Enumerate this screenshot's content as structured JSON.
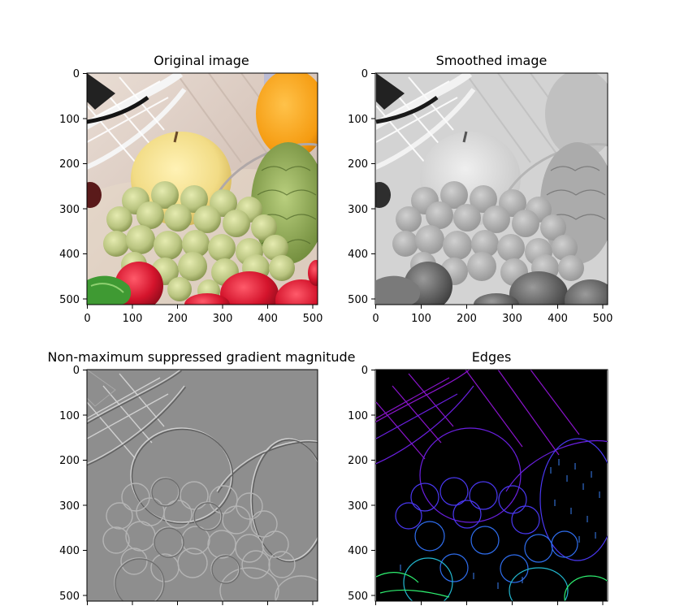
{
  "figure": {
    "panels": [
      {
        "id": "original",
        "title": "Original image",
        "kind": "color-photo",
        "x_ticks": [
          "0",
          "100",
          "200",
          "300",
          "400",
          "500"
        ],
        "y_ticks": [
          "0",
          "100",
          "200",
          "300",
          "400",
          "500"
        ],
        "x_range": [
          0,
          512
        ],
        "y_range": [
          0,
          512
        ]
      },
      {
        "id": "smoothed",
        "title": "Smoothed image",
        "kind": "grayscale-photo",
        "x_ticks": [
          "0",
          "100",
          "200",
          "300",
          "400",
          "500"
        ],
        "y_ticks": [
          "0",
          "100",
          "200",
          "300",
          "400",
          "500"
        ],
        "x_range": [
          0,
          512
        ],
        "y_range": [
          0,
          512
        ]
      },
      {
        "id": "nms",
        "title": "Non-maximum suppressed gradient magnitude",
        "kind": "gray-emboss",
        "x_ticks": [],
        "y_ticks": [
          "0",
          "100",
          "200",
          "300",
          "400",
          "500"
        ],
        "x_range": [
          0,
          512
        ],
        "y_range": [
          0,
          512
        ]
      },
      {
        "id": "edges",
        "title": "Edges",
        "kind": "edge-map",
        "x_ticks": [],
        "y_ticks": [
          "0",
          "100",
          "200",
          "300",
          "400",
          "500"
        ],
        "x_range": [
          0,
          512
        ],
        "y_range": [
          0,
          512
        ]
      }
    ],
    "colors": {
      "background": "#ffffff",
      "nms_gray": "#8e8e8e",
      "edges_background": "#000000",
      "edges_colormap": [
        "#7a10c8",
        "#3a2af0",
        "#2f7bf0",
        "#20d6b0",
        "#2ef070"
      ]
    }
  }
}
